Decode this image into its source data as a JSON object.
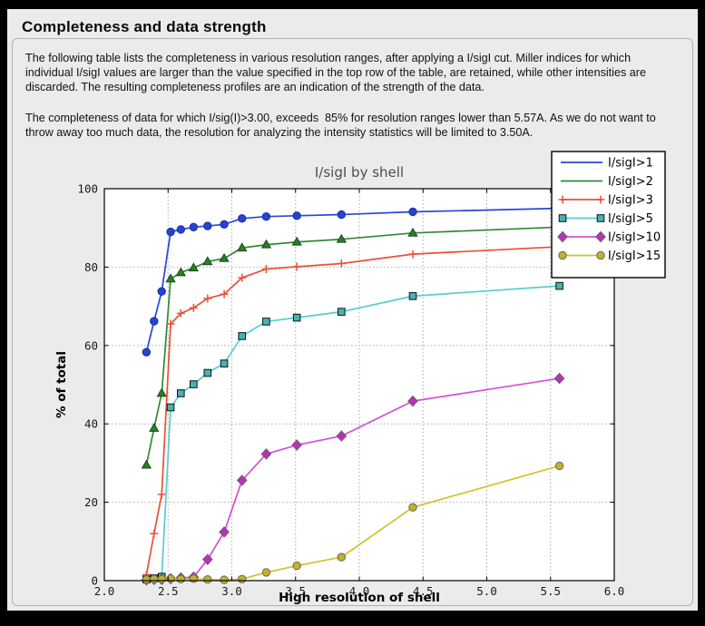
{
  "window": {
    "title": "Completeness and data strength"
  },
  "description": {
    "paragraph1": "The following table lists the completeness in various resolution ranges, after applying a I/sigI cut. Miller indices for which individual I/sigI values are larger than the value specified in the top row of the table, are retained, while other intensities are discarded. The resulting completeness profiles are an indication of the strength of the data.",
    "paragraph2": "The completeness of data for which I/sig(I)>3.00, exceeds  85% for resolution ranges lower than 5.57A. As we do not want to throw away too much data, the resolution for analyzing the intensity statistics will be limited to 3.50A."
  },
  "colors": {
    "frame": "#000000",
    "window_bg": "#ebebeb",
    "panel_border": "#b3b3b3",
    "plot_bg": "#ffffff",
    "grid": "#aaaaaa",
    "axis": "#000000",
    "chart_title_text": "#4d4d4d",
    "legend_bg": "#ffffff",
    "legend_border": "#000000"
  },
  "chart_data": {
    "type": "line",
    "title": "I/sigI by shell",
    "xlabel": "High resolution of shell",
    "ylabel": "% of total",
    "xlim": [
      2.0,
      6.0
    ],
    "ylim": [
      0,
      100
    ],
    "xticks": [
      2.0,
      2.5,
      3.0,
      3.5,
      4.0,
      4.5,
      5.0,
      5.5,
      6.0
    ],
    "yticks": [
      0,
      20,
      40,
      60,
      80,
      100
    ],
    "grid": true,
    "legend_position": "upper right",
    "x": [
      2.33,
      2.39,
      2.45,
      2.52,
      2.6,
      2.7,
      2.81,
      2.94,
      3.08,
      3.27,
      3.51,
      3.86,
      4.42,
      5.57
    ],
    "series": [
      {
        "name": "I/sigI>1",
        "line_color": "#2946d8",
        "marker": "circle",
        "marker_fill": "#2644cf",
        "marker_edge": "#1b2f9e",
        "legend_markers": false,
        "values": [
          58.3,
          66.2,
          73.8,
          89.0,
          89.6,
          90.2,
          90.5,
          90.9,
          92.4,
          92.9,
          93.1,
          93.4,
          94.1,
          95.0
        ]
      },
      {
        "name": "I/sigI>2",
        "line_color": "#348834",
        "marker": "triangle",
        "marker_fill": "#2e7d28",
        "marker_edge": "#16491a",
        "legend_markers": false,
        "values": [
          29.5,
          38.9,
          47.8,
          77.0,
          78.6,
          79.8,
          81.4,
          82.2,
          84.9,
          85.7,
          86.4,
          87.1,
          88.7,
          90.2
        ]
      },
      {
        "name": "I/sigI>3",
        "line_color": "#e85038",
        "marker": "plus",
        "marker_fill": "#e85038",
        "marker_edge": "#e85038",
        "legend_markers": true,
        "values": [
          1.5,
          12.0,
          22.0,
          65.5,
          68.2,
          69.6,
          72.0,
          73.1,
          77.3,
          79.5,
          80.1,
          80.9,
          83.3,
          85.2
        ]
      },
      {
        "name": "I/sigI>5",
        "line_color": "#5acccc",
        "marker": "square",
        "marker_fill": "#46b2b2",
        "marker_edge": "#111111",
        "legend_markers": true,
        "values": [
          0.3,
          0.6,
          1.0,
          44.2,
          47.8,
          50.1,
          53.0,
          55.4,
          62.4,
          66.1,
          67.1,
          68.6,
          72.6,
          75.2
        ]
      },
      {
        "name": "I/sigI>10",
        "line_color": "#d44fd4",
        "marker": "diamond",
        "marker_fill": "#bb2fbb",
        "marker_edge": "#666666",
        "legend_markers": true,
        "values": [
          0.2,
          0.3,
          0.3,
          0.5,
          0.7,
          0.9,
          5.4,
          12.4,
          25.6,
          32.3,
          34.6,
          36.9,
          45.8,
          51.6
        ]
      },
      {
        "name": "I/sigI>15",
        "line_color": "#cfc32a",
        "marker": "circle",
        "marker_fill": "#c1b325",
        "marker_edge": "#666666",
        "legend_markers": true,
        "values": [
          0.3,
          0.4,
          0.4,
          0.5,
          0.4,
          0.5,
          0.3,
          0.2,
          0.4,
          2.1,
          3.8,
          6.0,
          18.7,
          29.3
        ]
      }
    ]
  }
}
